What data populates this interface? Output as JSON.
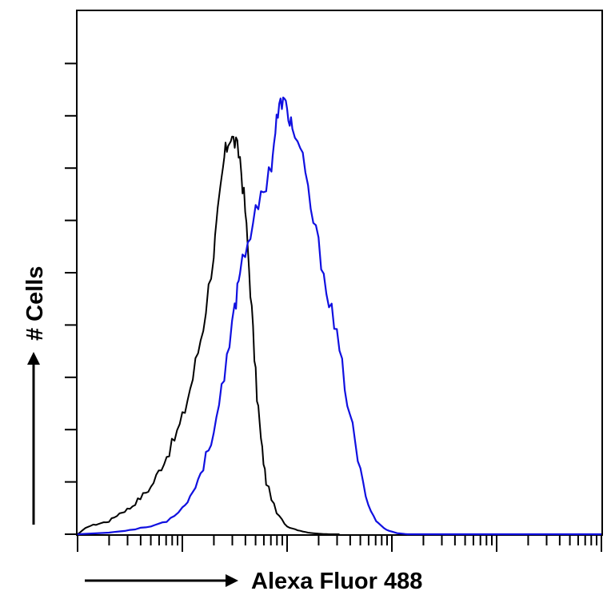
{
  "chart_data": {
    "type": "line",
    "title": "",
    "xlabel": "Alexa Fluor 488",
    "ylabel": "# Cells",
    "x_scale": "log",
    "xlim": [
      0,
      100
    ],
    "ylim": [
      0,
      100
    ],
    "grid": false,
    "legend": "none",
    "colors": {
      "control": "#000000",
      "sample": "#1010e0",
      "axis": "#000000"
    },
    "series": [
      {
        "x": [
          0,
          2,
          4,
          6,
          8,
          10,
          12,
          14,
          16,
          18,
          20,
          22,
          24,
          26,
          27,
          28,
          29,
          30,
          31,
          32,
          33,
          34,
          35,
          36,
          38,
          40,
          42,
          44,
          46,
          48,
          50
        ],
        "y": [
          0,
          1.5,
          2,
          2.5,
          4,
          5,
          7,
          9,
          13,
          17,
          22,
          30,
          40,
          54,
          63,
          72,
          76,
          75,
          72,
          62,
          47,
          30,
          18,
          10,
          4,
          1.5,
          0.8,
          0.3,
          0.1,
          0,
          0
        ]
      },
      {
        "x": [
          0,
          6,
          10,
          14,
          17,
          20,
          22,
          24,
          26,
          28,
          30,
          31,
          33,
          35,
          37,
          38,
          39,
          40,
          41,
          43,
          45,
          47,
          49,
          51,
          53,
          55,
          57,
          59,
          61,
          63,
          65,
          100
        ],
        "y": [
          0,
          0.3,
          0.8,
          1.5,
          2.5,
          5,
          8,
          13,
          20,
          29,
          43,
          51,
          58,
          64,
          71,
          79,
          83,
          81,
          78,
          71,
          60,
          50,
          40,
          29,
          17,
          7,
          2.5,
          0.8,
          0.2,
          0,
          0,
          0
        ]
      }
    ]
  }
}
